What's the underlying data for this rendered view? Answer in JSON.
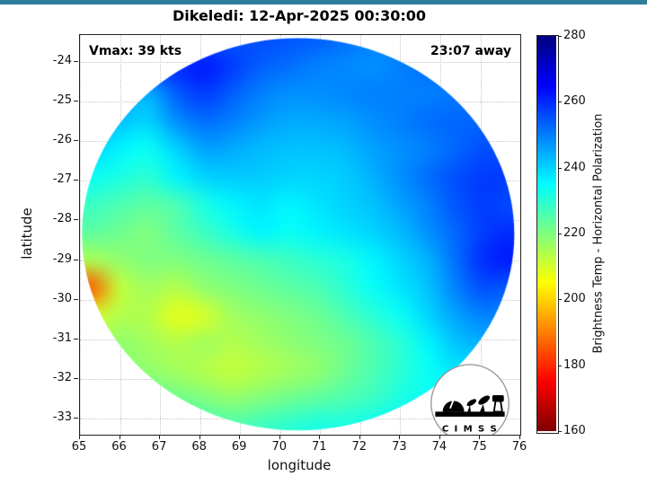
{
  "window": {
    "top_strip_color": "#2e7d9a"
  },
  "title": "Dikeledi: 12-Apr-2025 00:30:00",
  "annotations": {
    "vmax": "Vmax: 39 kts",
    "away": "23:07 away"
  },
  "axes": {
    "xlabel": "longitude",
    "ylabel": "latitude",
    "x_ticks": [
      65,
      66,
      67,
      68,
      69,
      70,
      71,
      72,
      73,
      74,
      75,
      76
    ],
    "y_ticks": [
      -24,
      -25,
      -26,
      -27,
      -28,
      -29,
      -30,
      -31,
      -32,
      -33
    ],
    "x_range": [
      65,
      76
    ],
    "y_range": [
      -33.41,
      -23.32
    ]
  },
  "colorbar": {
    "label": "Brightness Temp - Horizontal Polarization",
    "ticks": [
      160,
      180,
      200,
      220,
      240,
      260,
      280
    ],
    "min": 160,
    "max": 280
  },
  "logo": {
    "letters": "C I M S S"
  },
  "chart_data": {
    "type": "heatmap",
    "title": "Dikeledi: 12-Apr-2025 00:30:00",
    "xlabel": "longitude",
    "ylabel": "latitude",
    "value_label": "Brightness Temp - Horizontal Polarization (K)",
    "value_range": [
      160,
      280
    ],
    "colormap": "reversed-jet (280 K = dark blue, 220 K = green, 160 K = dark red)",
    "grid_on": true,
    "swath": {
      "center_lon": 70.45,
      "center_lat": -28.35,
      "radius_lon_deg": 5.4,
      "radius_lat_deg": 4.95
    },
    "grid": {
      "lon_start": 65.3,
      "dlon": 0.7,
      "lat_start": -23.4,
      "dlat": -0.7,
      "cols": 16,
      "rows": 15
    },
    "values_k": [
      [
        252,
        252,
        253,
        254,
        255,
        255,
        256,
        255,
        254,
        252,
        250,
        250,
        251,
        252,
        252,
        252
      ],
      [
        255,
        256,
        258,
        260,
        262,
        258,
        254,
        252,
        250,
        249,
        248,
        250,
        252,
        252,
        252,
        252
      ],
      [
        250,
        248,
        244,
        254,
        258,
        254,
        250,
        248,
        248,
        249,
        250,
        250,
        250,
        251,
        252,
        252
      ],
      [
        246,
        242,
        240,
        248,
        252,
        250,
        247,
        245,
        245,
        246,
        248,
        250,
        252,
        253,
        253,
        252
      ],
      [
        240,
        236,
        234,
        240,
        246,
        245,
        243,
        242,
        242,
        243,
        246,
        248,
        250,
        253,
        256,
        255
      ],
      [
        234,
        232,
        230,
        236,
        240,
        241,
        241,
        240,
        240,
        241,
        244,
        248,
        252,
        256,
        258,
        258
      ],
      [
        228,
        226,
        224,
        226,
        232,
        236,
        238,
        236,
        238,
        240,
        242,
        246,
        250,
        255,
        258,
        256
      ],
      [
        224,
        222,
        220,
        224,
        228,
        232,
        236,
        234,
        236,
        238,
        240,
        243,
        248,
        253,
        258,
        260
      ],
      [
        215,
        218,
        220,
        220,
        222,
        224,
        226,
        228,
        230,
        232,
        236,
        240,
        244,
        252,
        260,
        262
      ],
      [
        186,
        212,
        216,
        214,
        218,
        220,
        222,
        224,
        226,
        230,
        234,
        238,
        242,
        250,
        256,
        254
      ],
      [
        210,
        214,
        214,
        208,
        210,
        216,
        218,
        220,
        222,
        226,
        230,
        234,
        240,
        246,
        250,
        248
      ],
      [
        216,
        218,
        216,
        214,
        216,
        214,
        216,
        218,
        220,
        222,
        226,
        230,
        236,
        242,
        244,
        242
      ],
      [
        222,
        220,
        218,
        216,
        214,
        212,
        214,
        216,
        218,
        222,
        226,
        230,
        234,
        238,
        238,
        236
      ],
      [
        226,
        226,
        224,
        222,
        220,
        218,
        220,
        222,
        224,
        226,
        228,
        232,
        234,
        236,
        236,
        234
      ],
      [
        230,
        230,
        230,
        228,
        228,
        226,
        228,
        230,
        232,
        232,
        234,
        236,
        236,
        236,
        234,
        232
      ]
    ]
  }
}
